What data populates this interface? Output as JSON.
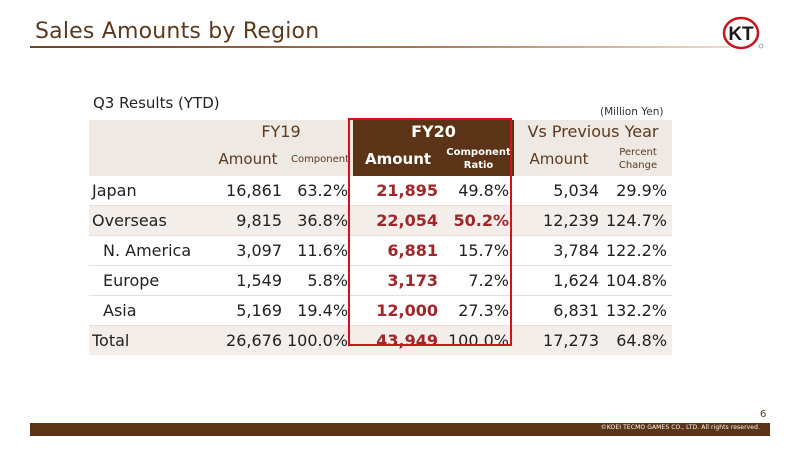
{
  "header": {
    "title": "Sales Amounts by Region",
    "logo_text": "KT"
  },
  "table_meta": {
    "subtitle": "Q3 Results (YTD)",
    "unit": "(Million Yen)"
  },
  "columns": {
    "fy19": "FY19",
    "fy20": "FY20",
    "vs": "Vs Previous Year",
    "amount": "Amount",
    "component_fy19": "Component",
    "component_fy20": "Component Ratio",
    "percent_change": "Percent Change"
  },
  "rows": [
    {
      "label": "Japan",
      "fy19_amount": "16,861",
      "fy19_ratio": "63.2%",
      "fy20_amount": "21,895",
      "fy20_ratio": "49.8%",
      "vs_amount": "5,034",
      "vs_change": "29.9%"
    },
    {
      "label": "Overseas",
      "fy19_amount": "9,815",
      "fy19_ratio": "36.8%",
      "fy20_amount": "22,054",
      "fy20_ratio": "50.2%",
      "vs_amount": "12,239",
      "vs_change": "124.7%"
    },
    {
      "label": "N. America",
      "fy19_amount": "3,097",
      "fy19_ratio": "11.6%",
      "fy20_amount": "6,881",
      "fy20_ratio": "15.7%",
      "vs_amount": "3,784",
      "vs_change": "122.2%"
    },
    {
      "label": "Europe",
      "fy19_amount": "1,549",
      "fy19_ratio": "5.8%",
      "fy20_amount": "3,173",
      "fy20_ratio": "7.2%",
      "vs_amount": "1,624",
      "vs_change": "104.8%"
    },
    {
      "label": "Asia",
      "fy19_amount": "5,169",
      "fy19_ratio": "19.4%",
      "fy20_amount": "12,000",
      "fy20_ratio": "27.3%",
      "vs_amount": "6,831",
      "vs_change": "132.2%"
    },
    {
      "label": "Total",
      "fy19_amount": "26,676",
      "fy19_ratio": "100.0%",
      "fy20_amount": "43,949",
      "fy20_ratio": "100.0%",
      "vs_amount": "17,273",
      "vs_change": "64.8%"
    }
  ],
  "footer": {
    "page_number": "6",
    "copyright": "©KOEI TECMO GAMES CO., LTD. All rights reserved."
  },
  "colors": {
    "brand_brown": "#5b3316",
    "highlight_red": "#d0141b",
    "value_red": "#a1262b"
  }
}
